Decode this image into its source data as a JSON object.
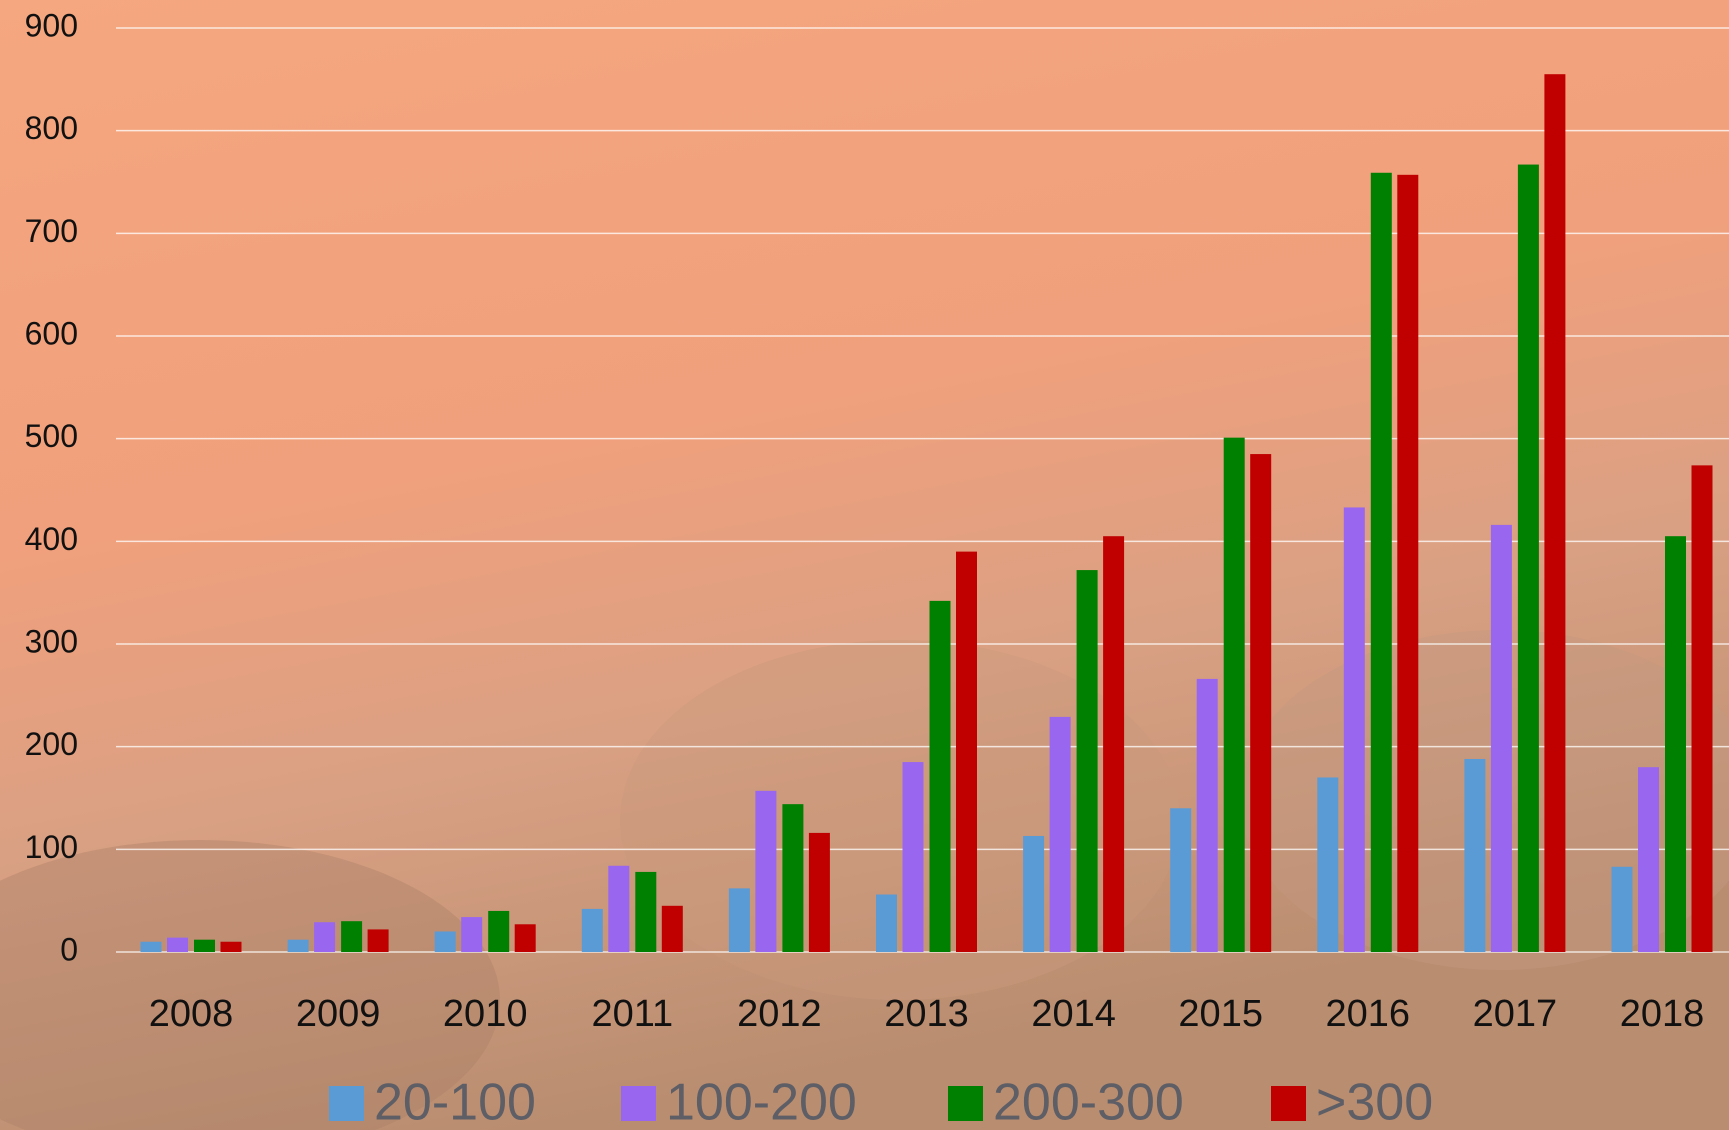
{
  "chart_data": {
    "type": "bar",
    "categories": [
      "2008",
      "2009",
      "2010",
      "2011",
      "2012",
      "2013",
      "2014",
      "2015",
      "2016",
      "2017",
      "2018"
    ],
    "series": [
      {
        "name": "20-100",
        "color": "#5b9bd5",
        "values": [
          10,
          12,
          20,
          42,
          62,
          56,
          113,
          140,
          170,
          188,
          83
        ]
      },
      {
        "name": "100-200",
        "color": "#9966f0",
        "values": [
          14,
          29,
          34,
          84,
          157,
          185,
          229,
          266,
          433,
          416,
          180
        ]
      },
      {
        "name": "200-300",
        "color": "#008000",
        "values": [
          12,
          30,
          40,
          78,
          144,
          342,
          372,
          501,
          759,
          767,
          405
        ]
      },
      {
        "name": ">300",
        "color": "#c00000",
        "values": [
          10,
          22,
          27,
          45,
          116,
          390,
          405,
          485,
          757,
          855,
          474
        ]
      }
    ],
    "ylim": [
      0,
      900
    ],
    "yticks": [
      0,
      100,
      200,
      300,
      400,
      500,
      600,
      700,
      800,
      900
    ],
    "grid": true,
    "legend": "bottom"
  }
}
